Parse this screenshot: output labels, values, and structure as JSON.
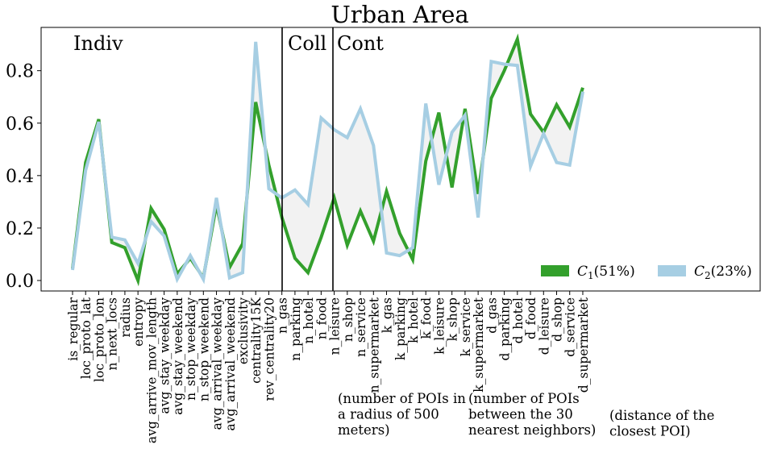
{
  "chart_data": {
    "type": "line",
    "title": "Urban Area",
    "xlabel": "",
    "ylabel": "",
    "ylim": [
      -0.04,
      0.965
    ],
    "yticks": [
      "0.0",
      "0.2",
      "0.4",
      "0.6",
      "0.8"
    ],
    "ytick_values": [
      0.0,
      0.2,
      0.4,
      0.6,
      0.8
    ],
    "categories": [
      "is_regular",
      "loc_proto_lat",
      "loc_proto_lon",
      "n_next_locs",
      "radius",
      "entropy",
      "avg_arrive_mov_length",
      "avg_stay_weekday",
      "avg_stay_weekend",
      "n_stop_weekday",
      "n_stop_weekend",
      "avg_arrival_weekday",
      "avg_arrival_weekend",
      "exclusivity",
      "centrality15K",
      "rev_centrality20",
      "n_gas",
      "n_parking",
      "n_hotel",
      "n_food",
      "n_leisure",
      "n_shop",
      "n_service",
      "n_supermarket",
      "k_gas",
      "k_parking",
      "k_hotel",
      "k_food",
      "k_leisure",
      "k_shop",
      "k_service",
      "k_supermarket",
      "d_gas",
      "d_parking",
      "d_hotel",
      "d_food",
      "d_leisure",
      "d_shop",
      "d_service",
      "d_supermarket"
    ],
    "series": [
      {
        "name": "C1(51%)",
        "name_main": "C",
        "name_sub": "1",
        "name_rest": "(51%)",
        "color": "#33a02c",
        "values": [
          0.045,
          0.45,
          0.615,
          0.145,
          0.125,
          0.0,
          0.275,
          0.195,
          0.025,
          0.085,
          0.01,
          0.29,
          0.05,
          0.14,
          0.68,
          0.44,
          0.24,
          0.085,
          0.03,
          0.165,
          0.315,
          0.135,
          0.265,
          0.15,
          0.34,
          0.18,
          0.08,
          0.455,
          0.64,
          0.355,
          0.655,
          0.33,
          0.695,
          0.8,
          0.92,
          0.635,
          0.565,
          0.67,
          0.585,
          0.735
        ]
      },
      {
        "name": "C2(23%)",
        "name_main": "C",
        "name_sub": "2",
        "name_rest": "(23%)",
        "color": "#a6cee3",
        "values": [
          0.04,
          0.42,
          0.605,
          0.165,
          0.155,
          0.065,
          0.225,
          0.17,
          0.005,
          0.095,
          0.005,
          0.315,
          0.01,
          0.03,
          0.91,
          0.35,
          0.315,
          0.345,
          0.29,
          0.62,
          0.575,
          0.545,
          0.655,
          0.515,
          0.105,
          0.095,
          0.125,
          0.675,
          0.365,
          0.565,
          0.63,
          0.24,
          0.835,
          0.825,
          0.82,
          0.435,
          0.56,
          0.45,
          0.44,
          0.72
        ]
      }
    ],
    "legend": "lower-right",
    "grid": false,
    "section_labels": [
      "Indiv",
      "Coll",
      "Cont"
    ],
    "group_notes": [
      [
        "(number of POIs in",
        "a radius of 500",
        "meters)"
      ],
      [
        "(number of POIs",
        "between the 30",
        "nearest neighbors)"
      ],
      [
        "(distance of the",
        "closest POI)"
      ]
    ]
  }
}
